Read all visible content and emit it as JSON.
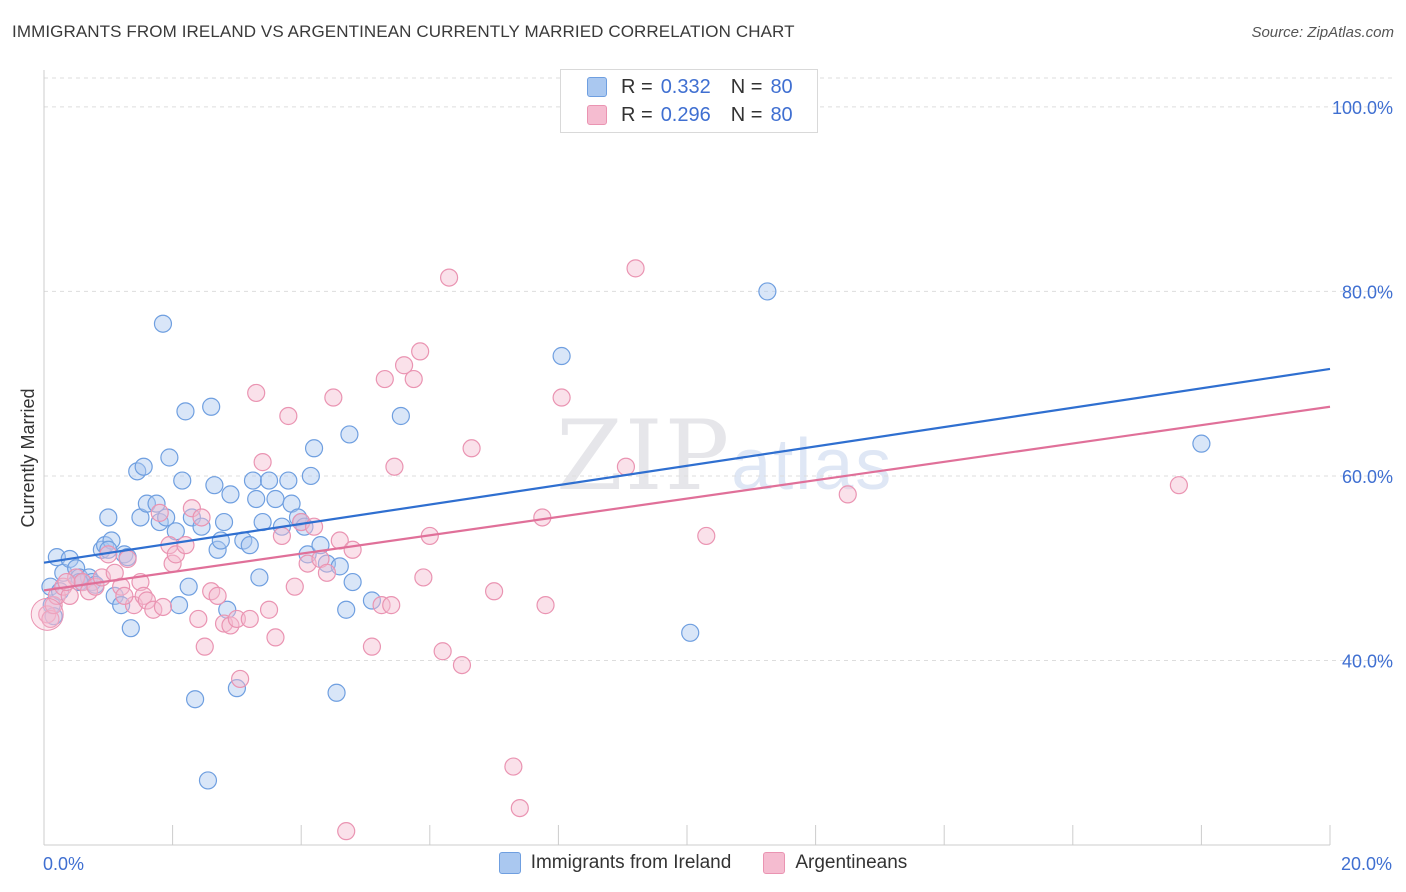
{
  "header": {
    "title": "IMMIGRANTS FROM IRELAND VS ARGENTINEAN CURRENTLY MARRIED CORRELATION CHART",
    "source": "Source: ZipAtlas.com"
  },
  "watermark": {
    "zip": "ZIP",
    "atlas": "atlas"
  },
  "legend_top": {
    "rows": [
      {
        "r_label": "R =",
        "r_value": "0.332",
        "n_label": "N =",
        "n_value": "80"
      },
      {
        "r_label": "R =",
        "r_value": "0.296",
        "n_label": "N =",
        "n_value": "80"
      }
    ]
  },
  "legend_bottom": {
    "items": [
      {
        "label": "Immigrants from Ireland"
      },
      {
        "label": "Argentineans"
      }
    ]
  },
  "colors": {
    "blue_fill": "#aac8f0",
    "blue_stroke": "#6f9fe0",
    "blue_line": "#2f6fd0",
    "pink_fill": "#f5bcd0",
    "pink_stroke": "#ea94b2",
    "pink_line": "#e07099",
    "tick_label": "#3f6fd1",
    "grid": "#dddddd"
  },
  "chart_data": {
    "type": "scatter",
    "title": "IMMIGRANTS FROM IRELAND VS ARGENTINEAN CURRENTLY MARRIED CORRELATION CHART",
    "xlabel": "",
    "ylabel": "Currently Married",
    "xlim": [
      0,
      20
    ],
    "ylim": [
      20,
      104
    ],
    "x_tick_labels": [
      {
        "value": 0,
        "label": "0.0%"
      },
      {
        "value": 20,
        "label": "20.0%"
      }
    ],
    "y_tick_labels": [
      {
        "value": 40,
        "label": "40.0%"
      },
      {
        "value": 60,
        "label": "60.0%"
      },
      {
        "value": 80,
        "label": "80.0%"
      },
      {
        "value": 100,
        "label": "100.0%"
      }
    ],
    "x_minor_ticks": [
      2,
      4,
      6,
      8,
      10,
      12,
      14,
      16,
      18,
      20
    ],
    "grid": true,
    "legend_position": "top-center",
    "series": [
      {
        "name": "Immigrants from Ireland",
        "color": "#aac8f0",
        "trend": {
          "x": [
            0,
            20
          ],
          "y": [
            50.6,
            71.6
          ]
        },
        "points": [
          [
            0.1,
            48.0
          ],
          [
            0.12,
            46.0
          ],
          [
            0.15,
            44.8
          ],
          [
            0.2,
            51.2
          ],
          [
            0.25,
            47.5
          ],
          [
            0.3,
            49.5
          ],
          [
            0.4,
            51.0
          ],
          [
            0.5,
            50.0
          ],
          [
            0.55,
            49.0
          ],
          [
            0.6,
            48.5
          ],
          [
            0.7,
            49.0
          ],
          [
            0.75,
            48.5
          ],
          [
            0.8,
            48.2
          ],
          [
            0.9,
            52.0
          ],
          [
            0.95,
            52.5
          ],
          [
            1.0,
            55.5
          ],
          [
            1.05,
            53.0
          ],
          [
            1.1,
            47.0
          ],
          [
            1.2,
            46.0
          ],
          [
            1.25,
            51.5
          ],
          [
            1.3,
            51.2
          ],
          [
            1.35,
            43.5
          ],
          [
            1.45,
            60.5
          ],
          [
            1.5,
            55.5
          ],
          [
            1.55,
            61.0
          ],
          [
            1.6,
            57.0
          ],
          [
            1.75,
            57.0
          ],
          [
            1.8,
            55.0
          ],
          [
            1.85,
            76.5
          ],
          [
            1.9,
            55.5
          ],
          [
            1.95,
            62.0
          ],
          [
            2.05,
            54.0
          ],
          [
            2.1,
            46.0
          ],
          [
            2.15,
            59.5
          ],
          [
            2.2,
            67.0
          ],
          [
            2.25,
            48.0
          ],
          [
            2.3,
            55.5
          ],
          [
            2.35,
            35.8
          ],
          [
            2.45,
            54.5
          ],
          [
            2.55,
            27.0
          ],
          [
            2.6,
            67.5
          ],
          [
            2.65,
            59.0
          ],
          [
            2.7,
            52.0
          ],
          [
            2.75,
            53.0
          ],
          [
            2.8,
            55.0
          ],
          [
            2.85,
            45.5
          ],
          [
            2.9,
            58.0
          ],
          [
            3.0,
            37.0
          ],
          [
            3.1,
            53.0
          ],
          [
            3.2,
            52.5
          ],
          [
            3.25,
            59.5
          ],
          [
            3.3,
            57.5
          ],
          [
            3.35,
            49.0
          ],
          [
            3.4,
            55.0
          ],
          [
            3.5,
            59.5
          ],
          [
            3.6,
            57.5
          ],
          [
            3.7,
            54.5
          ],
          [
            3.8,
            59.5
          ],
          [
            3.85,
            57.0
          ],
          [
            3.95,
            55.5
          ],
          [
            4.0,
            55.0
          ],
          [
            4.05,
            54.5
          ],
          [
            4.1,
            51.5
          ],
          [
            4.15,
            60.0
          ],
          [
            4.2,
            63.0
          ],
          [
            4.3,
            52.5
          ],
          [
            4.4,
            50.5
          ],
          [
            4.55,
            36.5
          ],
          [
            4.6,
            50.2
          ],
          [
            4.7,
            45.5
          ],
          [
            4.75,
            64.5
          ],
          [
            4.8,
            48.5
          ],
          [
            5.1,
            46.5
          ],
          [
            5.55,
            66.5
          ],
          [
            8.05,
            73.0
          ],
          [
            10.05,
            43.0
          ],
          [
            11.25,
            80.0
          ],
          [
            18.0,
            63.5
          ],
          [
            1.0,
            52.0
          ],
          [
            0.55,
            48.5
          ]
        ]
      },
      {
        "name": "Argentineans",
        "color": "#f5bcd0",
        "trend": {
          "x": [
            0,
            20
          ],
          "y": [
            47.6,
            67.5
          ]
        },
        "points": [
          [
            0.05,
            45.0
          ],
          [
            0.1,
            44.5
          ],
          [
            0.15,
            46.0
          ],
          [
            0.2,
            47.0
          ],
          [
            0.3,
            48.0
          ],
          [
            0.4,
            47.0
          ],
          [
            0.5,
            49.0
          ],
          [
            0.6,
            48.5
          ],
          [
            0.7,
            47.5
          ],
          [
            0.8,
            48.0
          ],
          [
            0.9,
            49.0
          ],
          [
            1.0,
            51.5
          ],
          [
            1.1,
            49.5
          ],
          [
            1.2,
            48.0
          ],
          [
            1.3,
            51.0
          ],
          [
            1.4,
            46.0
          ],
          [
            1.5,
            48.5
          ],
          [
            1.55,
            47.0
          ],
          [
            1.6,
            46.5
          ],
          [
            1.7,
            45.5
          ],
          [
            1.8,
            56.0
          ],
          [
            1.85,
            45.8
          ],
          [
            1.95,
            52.5
          ],
          [
            2.0,
            50.5
          ],
          [
            2.05,
            51.5
          ],
          [
            2.2,
            52.5
          ],
          [
            2.3,
            56.5
          ],
          [
            2.4,
            44.5
          ],
          [
            2.45,
            55.5
          ],
          [
            2.5,
            41.5
          ],
          [
            2.6,
            47.5
          ],
          [
            2.7,
            47.0
          ],
          [
            2.8,
            44.0
          ],
          [
            2.9,
            43.8
          ],
          [
            3.0,
            44.5
          ],
          [
            3.05,
            38.0
          ],
          [
            3.2,
            44.5
          ],
          [
            3.3,
            69.0
          ],
          [
            3.4,
            61.5
          ],
          [
            3.5,
            45.5
          ],
          [
            3.6,
            42.5
          ],
          [
            3.7,
            53.5
          ],
          [
            3.8,
            66.5
          ],
          [
            3.9,
            48.0
          ],
          [
            4.0,
            55.0
          ],
          [
            4.1,
            50.5
          ],
          [
            4.2,
            54.5
          ],
          [
            4.3,
            51.0
          ],
          [
            4.4,
            49.5
          ],
          [
            4.5,
            68.5
          ],
          [
            4.6,
            53.0
          ],
          [
            4.7,
            21.5
          ],
          [
            4.8,
            52.0
          ],
          [
            5.1,
            41.5
          ],
          [
            5.25,
            46.0
          ],
          [
            5.3,
            70.5
          ],
          [
            5.45,
            61.0
          ],
          [
            5.6,
            72.0
          ],
          [
            5.75,
            70.5
          ],
          [
            5.85,
            73.5
          ],
          [
            5.9,
            49.0
          ],
          [
            6.0,
            53.5
          ],
          [
            6.2,
            41.0
          ],
          [
            6.3,
            81.5
          ],
          [
            6.5,
            39.5
          ],
          [
            6.65,
            63.0
          ],
          [
            7.0,
            47.5
          ],
          [
            7.3,
            28.5
          ],
          [
            7.4,
            24.0
          ],
          [
            7.75,
            55.5
          ],
          [
            7.8,
            46.0
          ],
          [
            8.05,
            68.5
          ],
          [
            9.05,
            61.0
          ],
          [
            9.2,
            82.5
          ],
          [
            10.3,
            53.5
          ],
          [
            12.5,
            58.0
          ],
          [
            17.65,
            59.0
          ],
          [
            5.4,
            46.0
          ],
          [
            1.25,
            47.0
          ],
          [
            0.35,
            48.5
          ]
        ]
      }
    ]
  }
}
